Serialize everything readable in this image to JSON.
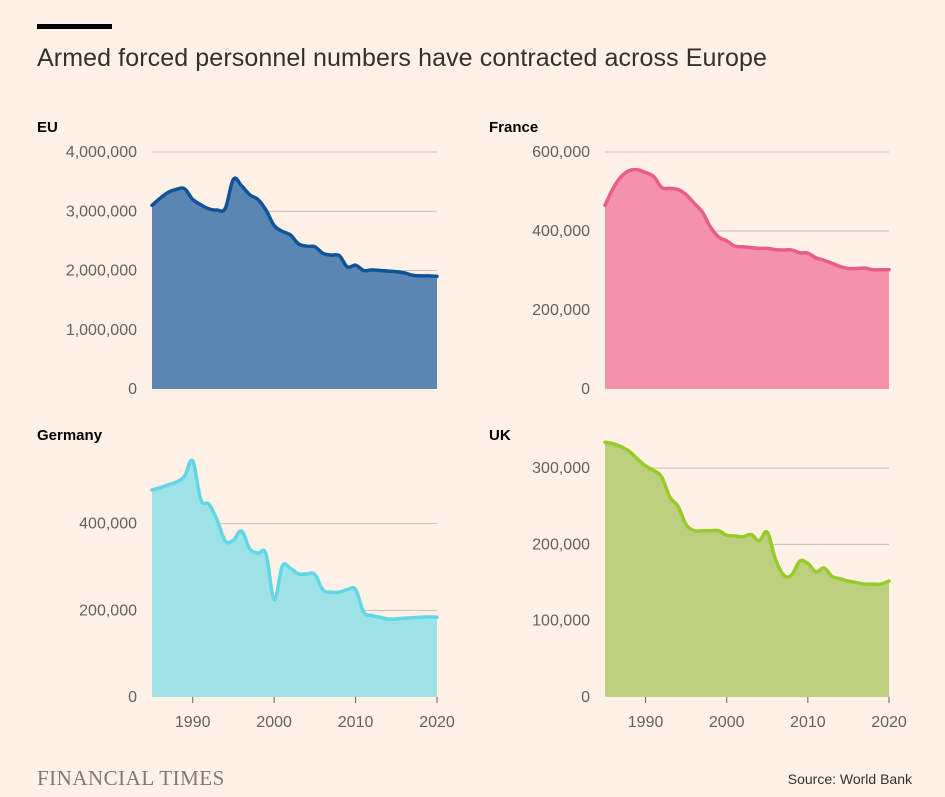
{
  "title": "Armed forced personnel numbers have contracted across Europe",
  "source": "Source: World Bank",
  "logo": "FINANCIAL TIMES",
  "colors": {
    "background": "#fff1e5",
    "gridline": "#c9c0b8"
  },
  "chart_data": [
    {
      "type": "area",
      "title": "EU",
      "line_color": "#0f5499",
      "fill_color": "#5b86b4",
      "xlim": [
        1985,
        2020
      ],
      "ylim": [
        0,
        4000000
      ],
      "yticks": [
        0,
        1000000,
        2000000,
        3000000,
        4000000
      ],
      "ytick_labels": [
        "0",
        "1,000,000",
        "2,000,000",
        "3,000,000",
        "4,000,000"
      ],
      "xticks": [],
      "xtick_labels": [],
      "x": [
        1985,
        1986,
        1987,
        1988,
        1989,
        1990,
        1991,
        1992,
        1993,
        1994,
        1995,
        1996,
        1997,
        1998,
        1999,
        2000,
        2001,
        2002,
        2003,
        2004,
        2005,
        2006,
        2007,
        2008,
        2009,
        2010,
        2011,
        2012,
        2013,
        2014,
        2015,
        2016,
        2017,
        2018,
        2019,
        2020
      ],
      "y": [
        3100000,
        3220000,
        3320000,
        3370000,
        3380000,
        3200000,
        3110000,
        3040000,
        3020000,
        3050000,
        3540000,
        3430000,
        3280000,
        3200000,
        3020000,
        2760000,
        2660000,
        2600000,
        2450000,
        2410000,
        2400000,
        2290000,
        2260000,
        2250000,
        2060000,
        2090000,
        2000000,
        2010000,
        2000000,
        1990000,
        1980000,
        1960000,
        1920000,
        1910000,
        1910000,
        1900000
      ]
    },
    {
      "type": "area",
      "title": "France",
      "line_color": "#e95d8c",
      "fill_color": "#f592ab",
      "xlim": [
        1985,
        2020
      ],
      "ylim": [
        0,
        600000
      ],
      "yticks": [
        0,
        200000,
        400000,
        600000
      ],
      "ytick_labels": [
        "0",
        "200,000",
        "400,000",
        "600,000"
      ],
      "xticks": [],
      "xtick_labels": [],
      "x": [
        1985,
        1986,
        1987,
        1988,
        1989,
        1990,
        1991,
        1992,
        1993,
        1994,
        1995,
        1996,
        1997,
        1998,
        1999,
        2000,
        2001,
        2002,
        2003,
        2004,
        2005,
        2006,
        2007,
        2008,
        2009,
        2010,
        2011,
        2012,
        2013,
        2014,
        2015,
        2016,
        2017,
        2018,
        2019,
        2020
      ],
      "y": [
        465000,
        508000,
        538000,
        553000,
        555000,
        548000,
        538000,
        510000,
        508000,
        505000,
        492000,
        470000,
        448000,
        410000,
        385000,
        375000,
        362000,
        360000,
        358000,
        356000,
        356000,
        353000,
        352000,
        352000,
        345000,
        344000,
        332000,
        326000,
        318000,
        310000,
        305000,
        305000,
        306000,
        302000,
        302000,
        302000
      ]
    },
    {
      "type": "area",
      "title": "Germany",
      "line_color": "#61d6e6",
      "fill_color": "#9ce2e7",
      "xlim": [
        1985,
        2020
      ],
      "ylim": [
        0,
        600000
      ],
      "yticks": [
        0,
        200000,
        400000
      ],
      "ytick_labels": [
        "0",
        "200,000",
        "400,000"
      ],
      "xticks": [
        1990,
        2000,
        2010,
        2020
      ],
      "xtick_labels": [
        "1990",
        "2000",
        "2010",
        "2020"
      ],
      "x": [
        1985,
        1986,
        1987,
        1988,
        1989,
        1990,
        1991,
        1992,
        1993,
        1994,
        1995,
        1996,
        1997,
        1998,
        1999,
        2000,
        2001,
        2002,
        2003,
        2004,
        2005,
        2006,
        2007,
        2008,
        2009,
        2010,
        2011,
        2012,
        2013,
        2014,
        2015,
        2016,
        2017,
        2018,
        2019,
        2020
      ],
      "y": [
        478000,
        483000,
        490000,
        496000,
        510000,
        545000,
        455000,
        445000,
        408000,
        360000,
        362000,
        383000,
        342000,
        332000,
        330000,
        225000,
        302000,
        297000,
        284000,
        284000,
        283000,
        247000,
        242000,
        242000,
        248000,
        248000,
        196000,
        188000,
        184000,
        180000,
        180000,
        182000,
        183000,
        184000,
        185000,
        184000
      ]
    },
    {
      "type": "area",
      "title": "UK",
      "line_color": "#96cc28",
      "fill_color": "#bbcf7f",
      "xlim": [
        1985,
        2020
      ],
      "ylim": [
        0,
        350000
      ],
      "yticks": [
        0,
        100000,
        200000,
        300000
      ],
      "ytick_labels": [
        "0",
        "100,000",
        "200,000",
        "300,000"
      ],
      "xticks": [
        1990,
        2000,
        2010,
        2020
      ],
      "xtick_labels": [
        "1990",
        "2000",
        "2010",
        "2020"
      ],
      "x": [
        1985,
        1986,
        1987,
        1988,
        1989,
        1990,
        1991,
        1992,
        1993,
        1994,
        1995,
        1996,
        1997,
        1998,
        1999,
        2000,
        2001,
        2002,
        2003,
        2004,
        2005,
        2006,
        2007,
        2008,
        2009,
        2010,
        2011,
        2012,
        2013,
        2014,
        2015,
        2016,
        2017,
        2018,
        2019,
        2020
      ],
      "y": [
        334000,
        332000,
        328000,
        322000,
        312000,
        303000,
        297000,
        288000,
        262000,
        250000,
        226000,
        218000,
        218000,
        218000,
        218000,
        212000,
        211000,
        210000,
        213000,
        205000,
        216000,
        181000,
        160000,
        160000,
        178000,
        175000,
        164000,
        169000,
        158000,
        155000,
        152000,
        150000,
        148000,
        148000,
        148000,
        152000
      ]
    }
  ]
}
